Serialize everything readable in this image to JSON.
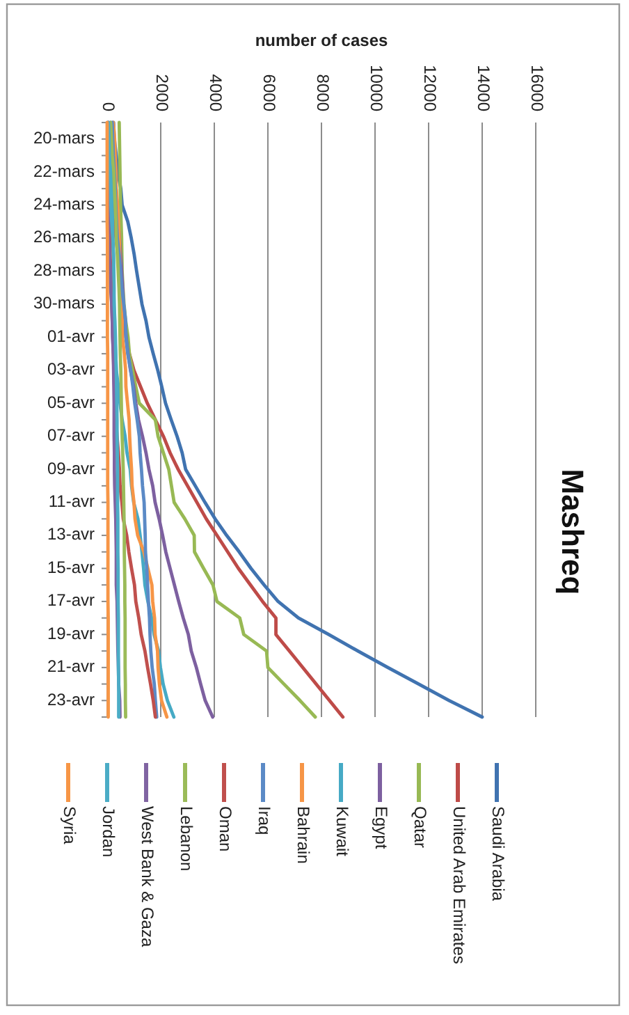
{
  "chart_data": {
    "type": "line",
    "orientation": "horizontal",
    "title": "Mashreq",
    "xlabel": "number of cases",
    "categories": [
      null,
      "20-mars",
      null,
      "22-mars",
      null,
      "24-mars",
      null,
      "26-mars",
      null,
      "28-mars",
      null,
      "30-mars",
      null,
      "01-avr",
      null,
      "03-avr",
      null,
      "05-avr",
      null,
      "07-avr",
      null,
      "09-avr",
      null,
      "11-avr",
      null,
      "13-avr",
      null,
      "15-avr",
      null,
      "17-avr",
      null,
      "19-avr",
      null,
      "21-avr",
      null,
      "23-avr",
      null
    ],
    "xlim": [
      0,
      16000
    ],
    "xticks": [
      0,
      2000,
      4000,
      6000,
      8000,
      10000,
      12000,
      14000,
      16000
    ],
    "grid": "x",
    "legend": "bottom",
    "series": [
      {
        "name": "Saudi Arabia",
        "color": "#4073b0",
        "values": [
          240,
          270,
          340,
          390,
          510,
          560,
          770,
          900,
          1010,
          1100,
          1200,
          1300,
          1450,
          1560,
          1720,
          1890,
          2040,
          2180,
          2390,
          2610,
          2800,
          2930,
          3290,
          3650,
          4030,
          4460,
          4930,
          5370,
          5860,
          6380,
          7140,
          8270,
          9360,
          10480,
          11630,
          12770,
          14000
        ]
      },
      {
        "name": "United Arab Emirates",
        "color": "#be4b48",
        "values": [
          110,
          140,
          140,
          150,
          150,
          200,
          250,
          330,
          400,
          470,
          570,
          610,
          660,
          700,
          830,
          1000,
          1250,
          1500,
          1800,
          2100,
          2350,
          2650,
          3000,
          3350,
          3700,
          4100,
          4500,
          4900,
          5350,
          5800,
          6300,
          6300,
          6800,
          7300,
          7800,
          8300,
          8800
        ]
      },
      {
        "name": "Qatar",
        "color": "#98b954",
        "values": [
          450,
          460,
          470,
          480,
          490,
          500,
          520,
          540,
          550,
          560,
          590,
          630,
          690,
          780,
          830,
          950,
          1070,
          1200,
          1800,
          1900,
          2100,
          2300,
          2400,
          2500,
          2900,
          3250,
          3260,
          3600,
          3950,
          4100,
          4950,
          5100,
          5950,
          6000,
          6600,
          7200,
          7770
        ]
      },
      {
        "name": "Egypt",
        "color": "#7d60a0",
        "values": [
          200,
          260,
          290,
          290,
          330,
          370,
          400,
          460,
          500,
          540,
          580,
          610,
          660,
          710,
          780,
          870,
          990,
          1070,
          1170,
          1320,
          1450,
          1560,
          1700,
          1790,
          1940,
          2070,
          2190,
          2350,
          2510,
          2670,
          2840,
          3030,
          3140,
          3330,
          3490,
          3660,
          3940
        ]
      },
      {
        "name": "Kuwait",
        "color": "#46aac5",
        "values": [
          140,
          150,
          160,
          180,
          190,
          190,
          200,
          210,
          230,
          240,
          240,
          260,
          270,
          290,
          320,
          340,
          420,
          480,
          560,
          670,
          740,
          860,
          910,
          990,
          1150,
          1230,
          1300,
          1360,
          1410,
          1520,
          1660,
          1750,
          1920,
          1990,
          2090,
          2250,
          2490
        ]
      },
      {
        "name": "Bahrain",
        "color": "#f69546",
        "values": [
          230,
          280,
          300,
          330,
          340,
          390,
          420,
          450,
          470,
          480,
          500,
          510,
          560,
          570,
          640,
          690,
          700,
          760,
          820,
          840,
          870,
          910,
          930,
          1000,
          1040,
          1140,
          1370,
          1520,
          1670,
          1700,
          1770,
          1790,
          1880,
          1900,
          1950,
          2030,
          2230
        ]
      },
      {
        "name": "Iraq",
        "color": "#5b8ac6",
        "values": [
          190,
          210,
          230,
          270,
          300,
          320,
          350,
          380,
          450,
          500,
          550,
          620,
          690,
          700,
          770,
          880,
          960,
          1030,
          1120,
          1200,
          1230,
          1280,
          1320,
          1380,
          1400,
          1420,
          1430,
          1480,
          1510,
          1540,
          1580,
          1600,
          1630,
          1680,
          1760,
          1800,
          1850
        ]
      },
      {
        "name": "Oman",
        "color": "#c0504d",
        "values": [
          40,
          50,
          50,
          50,
          60,
          70,
          80,
          100,
          110,
          130,
          150,
          170,
          190,
          210,
          230,
          250,
          270,
          300,
          330,
          370,
          420,
          460,
          480,
          550,
          600,
          730,
          810,
          910,
          1020,
          1070,
          1180,
          1270,
          1410,
          1510,
          1620,
          1720,
          1800
        ]
      },
      {
        "name": "Lebanon",
        "color": "#9bbb59",
        "values": [
          130,
          160,
          190,
          250,
          270,
          300,
          330,
          340,
          380,
          410,
          440,
          460,
          470,
          480,
          490,
          510,
          520,
          530,
          540,
          560,
          580,
          600,
          610,
          620,
          630,
          640,
          640,
          650,
          660,
          660,
          670,
          670,
          670,
          670,
          680,
          680,
          690
        ]
      },
      {
        "name": "West Bank & Gaza",
        "color": "#8064a2",
        "values": [
          40,
          50,
          50,
          50,
          60,
          60,
          60,
          60,
          90,
          120,
          130,
          170,
          190,
          200,
          230,
          240,
          250,
          260,
          260,
          260,
          270,
          270,
          280,
          300,
          320,
          330,
          340,
          340,
          340,
          370,
          380,
          390,
          400,
          420,
          430,
          470,
          480
        ]
      },
      {
        "name": "Jordan",
        "color": "#4bacc6",
        "values": [
          50,
          70,
          80,
          110,
          130,
          140,
          170,
          210,
          240,
          250,
          260,
          260,
          290,
          310,
          320,
          340,
          350,
          360,
          370,
          370,
          380,
          390,
          390,
          390,
          400,
          400,
          400,
          410,
          410,
          410,
          420,
          420,
          420,
          420,
          430,
          430,
          430
        ]
      },
      {
        "name": "Syria",
        "color": "#f79646",
        "values": [
          0,
          0,
          0,
          0,
          0,
          0,
          0,
          10,
          10,
          10,
          10,
          10,
          10,
          10,
          20,
          20,
          20,
          20,
          20,
          20,
          20,
          20,
          20,
          30,
          30,
          30,
          30,
          30,
          30,
          30,
          40,
          40,
          40,
          40,
          40,
          40,
          40
        ]
      }
    ]
  }
}
